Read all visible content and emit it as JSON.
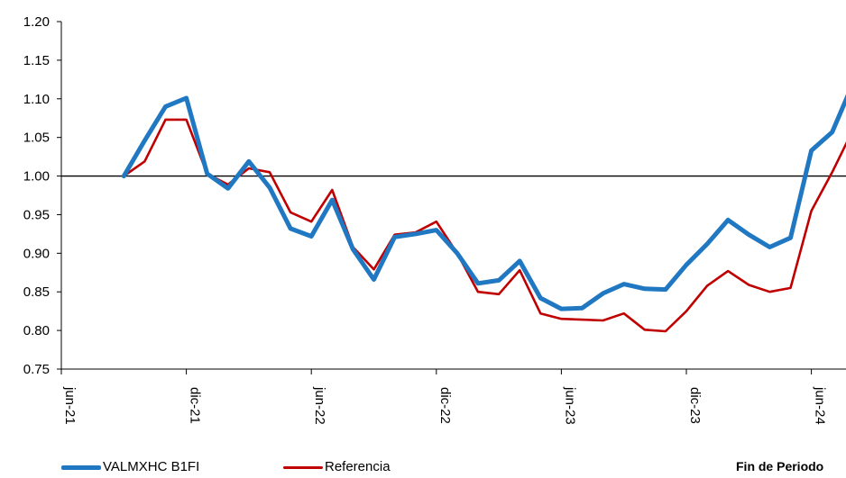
{
  "chart_data": {
    "type": "line",
    "x": [
      "2021-09",
      "2021-10",
      "2021-11",
      "2021-12",
      "2022-01",
      "2022-02",
      "2022-03",
      "2022-04",
      "2022-05",
      "2022-06",
      "2022-07",
      "2022-08",
      "2022-09",
      "2022-10",
      "2022-11",
      "2022-12",
      "2023-01",
      "2023-02",
      "2023-03",
      "2023-04",
      "2023-05",
      "2023-06",
      "2023-07",
      "2023-08",
      "2023-09",
      "2023-10",
      "2023-11",
      "2023-12",
      "2024-01",
      "2024-02",
      "2024-03",
      "2024-04",
      "2024-05",
      "2024-06",
      "2024-07",
      "2024-08"
    ],
    "series": [
      {
        "name": "VALMXHC B1FI",
        "color": "#1f78c1",
        "values": [
          1.0,
          1.046,
          1.09,
          1.101,
          1.003,
          0.984,
          1.019,
          0.985,
          0.932,
          0.922,
          0.969,
          0.905,
          0.866,
          0.921,
          0.925,
          0.93,
          0.9,
          0.861,
          0.865,
          0.89,
          0.842,
          0.828,
          0.829,
          0.848,
          0.86,
          0.854,
          0.853,
          0.885,
          0.912,
          0.943,
          0.924,
          0.908,
          0.92,
          1.033,
          1.057,
          1.12
        ]
      },
      {
        "name": "Referencia",
        "color": "#c00000",
        "values": [
          1.0,
          1.019,
          1.073,
          1.073,
          1.003,
          0.989,
          1.01,
          1.005,
          0.953,
          0.941,
          0.982,
          0.908,
          0.879,
          0.924,
          0.927,
          0.941,
          0.9,
          0.85,
          0.847,
          0.878,
          0.822,
          0.815,
          0.814,
          0.813,
          0.822,
          0.801,
          0.799,
          0.825,
          0.858,
          0.877,
          0.859,
          0.85,
          0.855,
          0.955,
          1.005,
          1.06
        ]
      }
    ],
    "x_ticks": [
      "jun-21",
      "dic-21",
      "jun-22",
      "dic-22",
      "jun-23",
      "dic-23",
      "jun-24"
    ],
    "y_ticks": [
      "0.75",
      "0.80",
      "0.85",
      "0.90",
      "0.95",
      "1.00",
      "1.05",
      "1.10",
      "1.15",
      "1.20"
    ],
    "ylim": [
      0.75,
      1.2
    ],
    "xlim": [
      "2021-06",
      "2024-08"
    ],
    "reference_line": 1.0,
    "grid": false,
    "legend_position": "bottom-left",
    "note": "Fin de Periodo"
  }
}
